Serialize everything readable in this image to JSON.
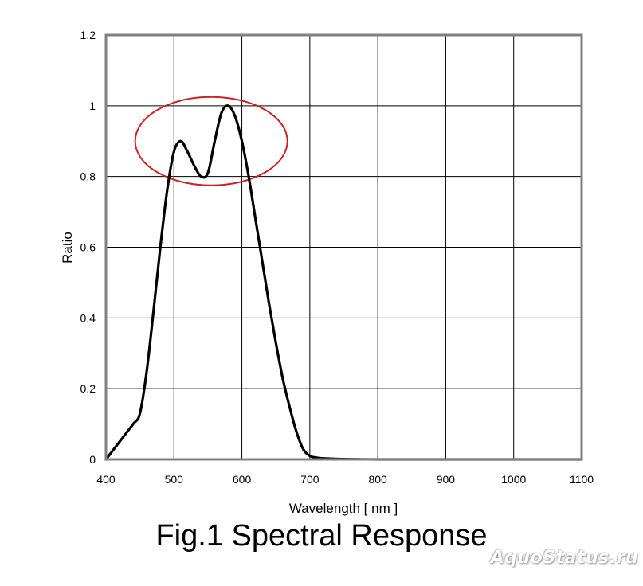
{
  "chart_data": {
    "type": "line",
    "title": "Fig.1 Spectral Response",
    "xlabel": "Wavelength [ nm ]",
    "ylabel": "Ratio",
    "xlim": [
      400,
      1100
    ],
    "ylim": [
      0,
      1.2
    ],
    "x_ticks": [
      "400",
      "500",
      "600",
      "700",
      "800",
      "900",
      "1000",
      "1100"
    ],
    "y_ticks": [
      "0",
      "0.2",
      "0.4",
      "0.6",
      "0.8",
      "1",
      "1.2"
    ],
    "grid": true,
    "legend": "none",
    "series": [
      {
        "color": "#000000",
        "x": [
          400,
          420,
          440,
          450,
          460,
          470,
          480,
          490,
          500,
          510,
          520,
          530,
          540,
          550,
          560,
          570,
          580,
          590,
          600,
          610,
          620,
          630,
          640,
          650,
          660,
          670,
          680,
          690,
          700,
          710,
          720,
          750,
          800,
          900,
          1000,
          1100
        ],
        "y": [
          0,
          0.05,
          0.1,
          0.13,
          0.25,
          0.42,
          0.6,
          0.76,
          0.87,
          0.9,
          0.87,
          0.83,
          0.8,
          0.81,
          0.9,
          0.98,
          1.0,
          0.97,
          0.9,
          0.8,
          0.68,
          0.56,
          0.44,
          0.33,
          0.23,
          0.15,
          0.08,
          0.03,
          0.01,
          0.005,
          0.003,
          0.001,
          0,
          0,
          0,
          0
        ]
      }
    ],
    "annotations": [
      {
        "shape": "ellipse",
        "color": "#cc2222",
        "cx": 555,
        "cy": 0.9,
        "rx": 112,
        "ry": 0.125
      }
    ]
  },
  "watermark": "AquoStatus.ru"
}
